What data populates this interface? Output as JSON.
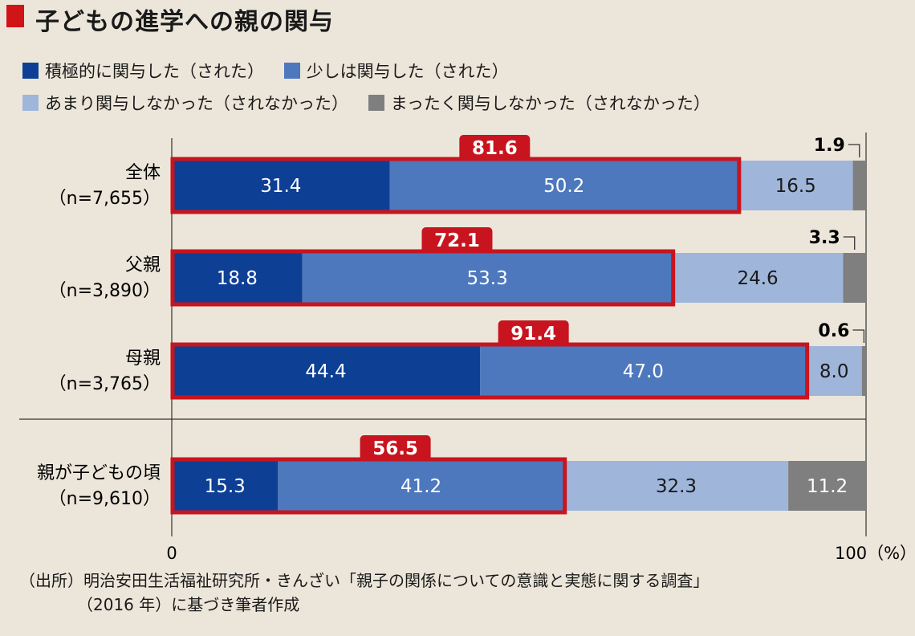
{
  "title": "子どもの進学への親の関与",
  "colors": {
    "title_mark": "#d01417",
    "highlight": "#c8141e",
    "series": [
      "#0d3f95",
      "#4d78bd",
      "#9fb5da",
      "#7f7f7f"
    ],
    "background": "#ece6da"
  },
  "legend": [
    {
      "label": "積極的に関与した（された）"
    },
    {
      "label": "少しは関与した（された）"
    },
    {
      "label": "あまり関与しなかった（されなかった）"
    },
    {
      "label": "まったく関与しなかった（されなかった）"
    }
  ],
  "chart_data": {
    "type": "bar",
    "orientation": "horizontal",
    "stacked": true,
    "xlim": [
      0,
      100
    ],
    "x_tick_labels": [
      "0",
      "100（%）"
    ],
    "categories": [
      {
        "label": "全体",
        "n": "（n=7,655）"
      },
      {
        "label": "父親",
        "n": "（n=3,890）"
      },
      {
        "label": "母親",
        "n": "（n=3,765）"
      },
      {
        "label": "親が子どもの頃",
        "n": "（n=9,610）"
      }
    ],
    "series": [
      {
        "name": "積極的に関与した（された）",
        "values": [
          31.4,
          18.8,
          44.4,
          15.3
        ],
        "labels": [
          "31.4",
          "18.8",
          "44.4",
          "15.3"
        ]
      },
      {
        "name": "少しは関与した（された）",
        "values": [
          50.2,
          53.3,
          47.0,
          41.2
        ],
        "labels": [
          "50.2",
          "53.3",
          "47.0",
          "41.2"
        ]
      },
      {
        "name": "あまり関与しなかった（されなかった）",
        "values": [
          16.5,
          24.6,
          8.0,
          32.3
        ],
        "labels": [
          "16.5",
          "24.6",
          "8.0",
          "32.3"
        ]
      },
      {
        "name": "まったく関与しなかった（されなかった）",
        "values": [
          1.9,
          3.3,
          0.6,
          11.2
        ],
        "labels": [
          "1.9",
          "3.3",
          "0.6",
          "11.2"
        ]
      }
    ],
    "highlight_totals": {
      "values": [
        81.6,
        72.1,
        91.4,
        56.5
      ],
      "labels": [
        "81.6",
        "72.1",
        "91.4",
        "56.5"
      ]
    },
    "callout_last_segment": [
      true,
      true,
      true,
      false
    ]
  },
  "source": {
    "line1": "（出所）明治安田生活福祉研究所・きんざい「親子の関係についての意識と実態に関する調査」",
    "line2": "（2016 年）に基づき筆者作成"
  }
}
